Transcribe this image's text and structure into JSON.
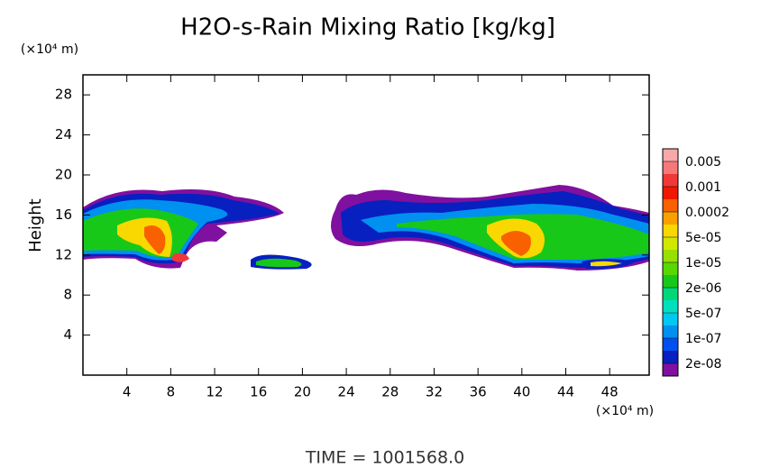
{
  "chart_data": {
    "type": "contour",
    "title": "H2O-s-Rain Mixing Ratio [kg/kg]",
    "y_label": "Height",
    "x_unit": "(×10⁴ m)",
    "y_unit": "(×10⁴ m)",
    "annotation": "TIME = 1001568.0",
    "xlim": [
      0,
      51.6
    ],
    "ylim": [
      0,
      30
    ],
    "xticks": [
      4,
      8,
      12,
      16,
      20,
      24,
      28,
      32,
      36,
      40,
      44,
      48
    ],
    "yticks": [
      4,
      8,
      12,
      16,
      20,
      24,
      28
    ],
    "colorbar": {
      "colors": [
        "#f8a8a8",
        "#f67878",
        "#f03838",
        "#f01800",
        "#f86000",
        "#f8a000",
        "#f8d800",
        "#d0e800",
        "#98e000",
        "#58d800",
        "#18c818",
        "#00d878",
        "#00e0c0",
        "#00c8f0",
        "#0090f0",
        "#0050f0",
        "#0820c0",
        "#8010a0"
      ],
      "ticks": [
        0.005,
        0.001,
        0.0002,
        {
          "value": 5e-05,
          "label": "5e-05"
        },
        {
          "value": 1e-05,
          "label": "1e-05"
        },
        {
          "value": 2e-06,
          "label": "2e-06"
        },
        {
          "value": 5e-07,
          "label": "5e-07"
        },
        {
          "value": 1e-07,
          "label": "1e-07"
        },
        {
          "value": 2e-08,
          "label": "2e-08"
        }
      ]
    }
  }
}
